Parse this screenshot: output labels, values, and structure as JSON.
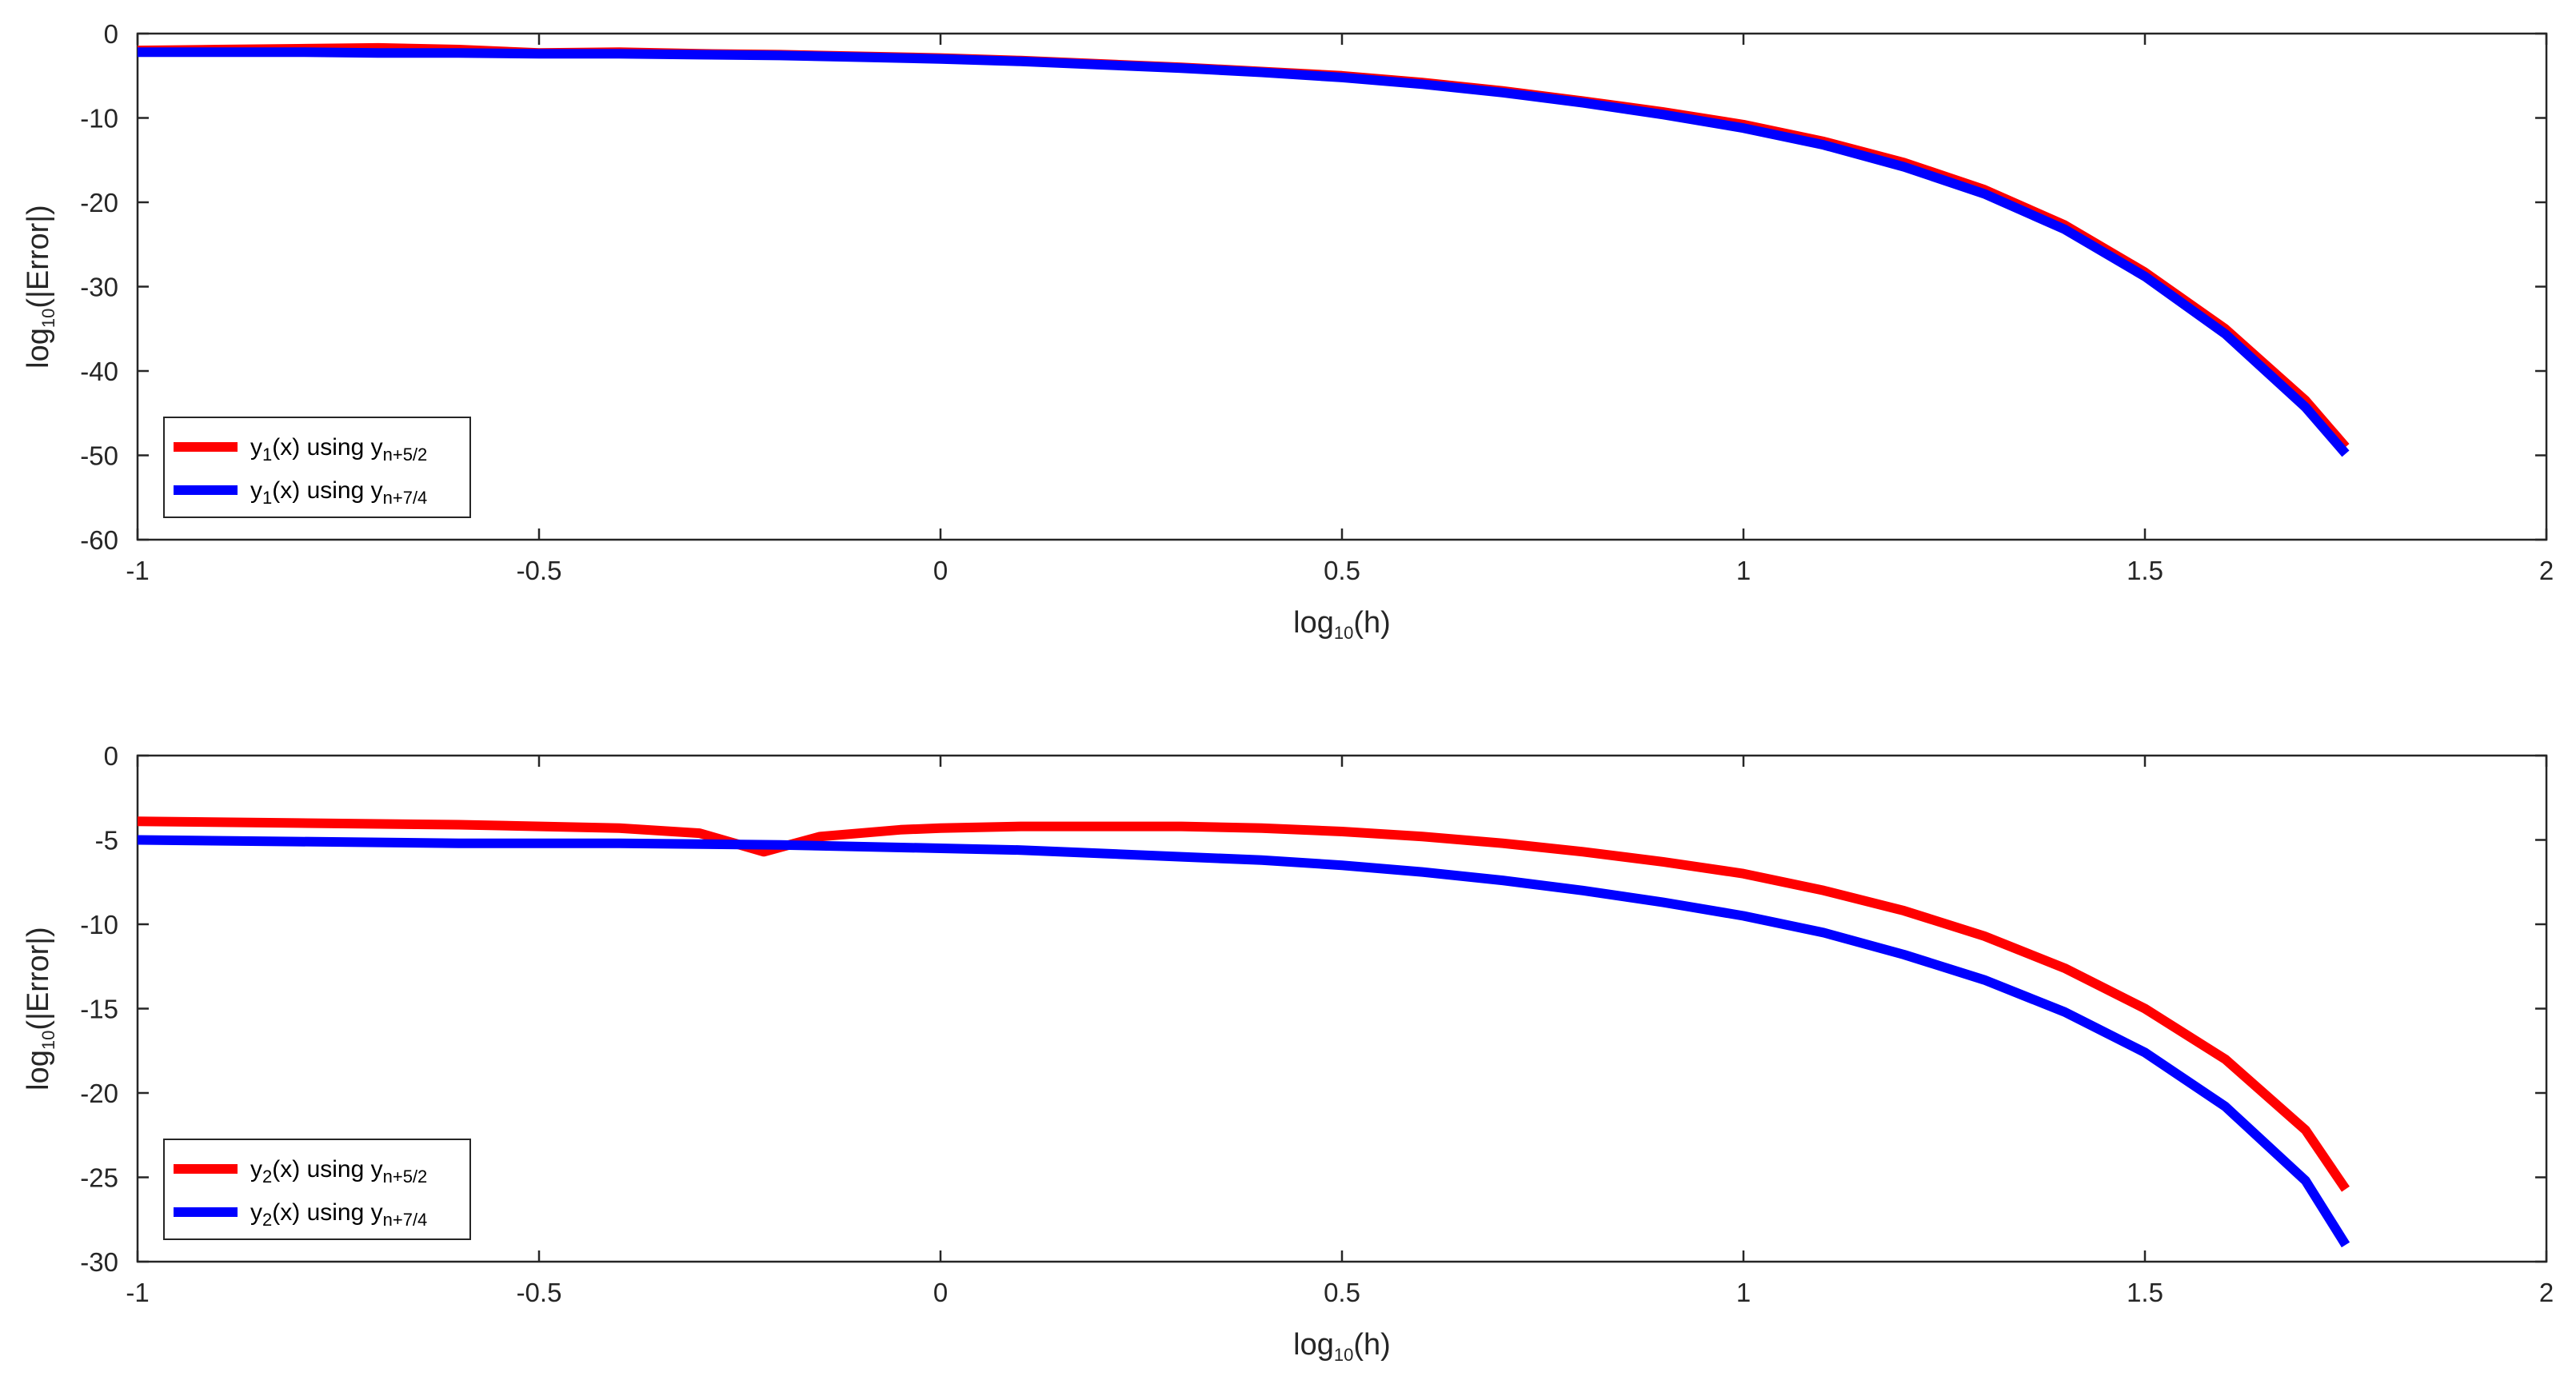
{
  "chart_data": [
    {
      "type": "line",
      "xlabel": {
        "base": "log",
        "sub": "10",
        "rest": "(h)"
      },
      "ylabel": {
        "base": "log",
        "sub": "10",
        "rest": "(|Error|)"
      },
      "xlim": [
        -1,
        2
      ],
      "ylim": [
        -60,
        0
      ],
      "xticks": [
        -1,
        -0.5,
        0,
        0.5,
        1,
        1.5,
        2
      ],
      "xtick_labels": [
        "-1",
        "-0.5",
        "0",
        "0.5",
        "1",
        "1.5",
        "2"
      ],
      "yticks": [
        0,
        -10,
        -20,
        -30,
        -40,
        -50,
        -60
      ],
      "ytick_labels": [
        "0",
        "-10",
        "-20",
        "-30",
        "-40",
        "-50",
        "-60"
      ],
      "grid": false,
      "legend_position": "bottom-left",
      "series": [
        {
          "name": {
            "a": "y",
            "a_sub": "1",
            "b": "(x) using y",
            "b_sub": "n+5/2"
          },
          "color": "#ff0000",
          "x": [
            -1.0,
            -0.9,
            -0.8,
            -0.7,
            -0.6,
            -0.5,
            -0.4,
            -0.3,
            -0.2,
            -0.1,
            0.0,
            0.1,
            0.2,
            0.3,
            0.4,
            0.5,
            0.6,
            0.7,
            0.8,
            0.9,
            1.0,
            1.1,
            1.2,
            1.3,
            1.4,
            1.5,
            1.6,
            1.7,
            1.75
          ],
          "y": [
            -2.0,
            -1.9,
            -1.8,
            -1.7,
            -1.9,
            -2.3,
            -2.2,
            -2.4,
            -2.5,
            -2.7,
            -2.9,
            -3.2,
            -3.6,
            -4.0,
            -4.5,
            -5.0,
            -5.8,
            -6.8,
            -8.0,
            -9.3,
            -10.8,
            -12.8,
            -15.3,
            -18.5,
            -22.7,
            -28.3,
            -35.0,
            -43.5,
            -49.0
          ]
        },
        {
          "name": {
            "a": "y",
            "a_sub": "1",
            "b": "(x) using y",
            "b_sub": "n+7/4"
          },
          "color": "#0000ff",
          "x": [
            -1.0,
            -0.9,
            -0.8,
            -0.7,
            -0.6,
            -0.5,
            -0.4,
            -0.3,
            -0.2,
            -0.1,
            0.0,
            0.1,
            0.2,
            0.3,
            0.4,
            0.5,
            0.6,
            0.7,
            0.8,
            0.9,
            1.0,
            1.1,
            1.2,
            1.3,
            1.4,
            1.5,
            1.6,
            1.7,
            1.75
          ],
          "y": [
            -2.2,
            -2.2,
            -2.2,
            -2.3,
            -2.3,
            -2.4,
            -2.4,
            -2.5,
            -2.6,
            -2.8,
            -3.0,
            -3.3,
            -3.7,
            -4.1,
            -4.6,
            -5.2,
            -6.0,
            -7.0,
            -8.2,
            -9.6,
            -11.2,
            -13.2,
            -15.8,
            -19.0,
            -23.2,
            -28.8,
            -35.6,
            -44.3,
            -49.8
          ]
        }
      ]
    },
    {
      "type": "line",
      "xlabel": {
        "base": "log",
        "sub": "10",
        "rest": "(h)"
      },
      "ylabel": {
        "base": "log",
        "sub": "10",
        "rest": "(|Error|)"
      },
      "xlim": [
        -1,
        2
      ],
      "ylim": [
        -30,
        0
      ],
      "xticks": [
        -1,
        -0.5,
        0,
        0.5,
        1,
        1.5,
        2
      ],
      "xtick_labels": [
        "-1",
        "-0.5",
        "0",
        "0.5",
        "1",
        "1.5",
        "2"
      ],
      "yticks": [
        0,
        -5,
        -10,
        -15,
        -20,
        -25,
        -30
      ],
      "ytick_labels": [
        "0",
        "-5",
        "-10",
        "-15",
        "-20",
        "-25",
        "-30"
      ],
      "grid": false,
      "legend_position": "bottom-left",
      "series": [
        {
          "name": {
            "a": "y",
            "a_sub": "2",
            "b": "(x) using y",
            "b_sub": "n+5/2"
          },
          "color": "#ff0000",
          "x": [
            -1.0,
            -0.8,
            -0.6,
            -0.4,
            -0.3,
            -0.22,
            -0.15,
            -0.05,
            0.0,
            0.1,
            0.2,
            0.3,
            0.4,
            0.5,
            0.6,
            0.7,
            0.8,
            0.9,
            1.0,
            1.1,
            1.2,
            1.3,
            1.4,
            1.5,
            1.6,
            1.7,
            1.75
          ],
          "y": [
            -3.9,
            -4.0,
            -4.1,
            -4.3,
            -4.6,
            -5.7,
            -4.8,
            -4.4,
            -4.3,
            -4.2,
            -4.2,
            -4.2,
            -4.3,
            -4.5,
            -4.8,
            -5.2,
            -5.7,
            -6.3,
            -7.0,
            -8.0,
            -9.2,
            -10.7,
            -12.6,
            -15.0,
            -18.0,
            -22.2,
            -25.7
          ]
        },
        {
          "name": {
            "a": "y",
            "a_sub": "2",
            "b": "(x) using y",
            "b_sub": "n+7/4"
          },
          "color": "#0000ff",
          "x": [
            -1.0,
            -0.8,
            -0.6,
            -0.4,
            -0.2,
            0.0,
            0.1,
            0.2,
            0.3,
            0.4,
            0.5,
            0.6,
            0.7,
            0.8,
            0.9,
            1.0,
            1.1,
            1.2,
            1.3,
            1.4,
            1.5,
            1.6,
            1.7,
            1.75
          ],
          "y": [
            -5.0,
            -5.1,
            -5.2,
            -5.2,
            -5.3,
            -5.5,
            -5.6,
            -5.8,
            -6.0,
            -6.2,
            -6.5,
            -6.9,
            -7.4,
            -8.0,
            -8.7,
            -9.5,
            -10.5,
            -11.8,
            -13.3,
            -15.2,
            -17.6,
            -20.8,
            -25.2,
            -29.0
          ]
        }
      ]
    }
  ]
}
